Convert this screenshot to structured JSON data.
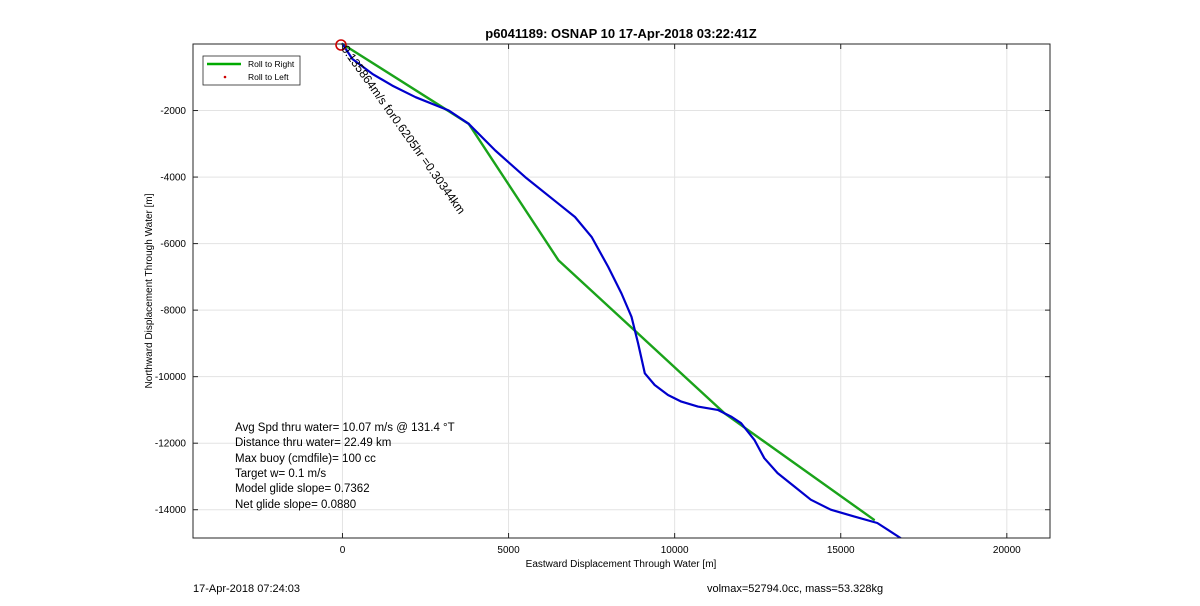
{
  "chart_data": {
    "type": "line",
    "title": "p6041189: OSNAP 10 17-Apr-2018 03:22:41Z",
    "xlabel": "Eastward Displacement Through Water [m]",
    "ylabel": "Northward Displacement Through Water [m]",
    "xlim": [
      -4500,
      21300
    ],
    "ylim": [
      -14850,
      0
    ],
    "xticks": [
      0,
      5000,
      10000,
      15000,
      20000
    ],
    "xtick_labels": [
      "0",
      "5000",
      "10000",
      "15000",
      "20000"
    ],
    "yticks": [
      -2000,
      -4000,
      -6000,
      -8000,
      -10000,
      -12000,
      -14000
    ],
    "ytick_labels": [
      "-2000",
      "-4000",
      "-6000",
      "-8000",
      "-10000",
      "-12000",
      "-14000"
    ],
    "grid": true,
    "legend": {
      "position": "top-left",
      "entries": [
        {
          "label": "Roll to Right",
          "color": "#00aa00",
          "style": "line"
        },
        {
          "label": "Roll to Left",
          "color": "#cc0000",
          "style": "dot"
        }
      ]
    },
    "series": [
      {
        "name": "Roll to Right",
        "color": "#1aa31a",
        "x": [
          0,
          3800,
          6500,
          11500,
          16000
        ],
        "y": [
          0,
          -2400,
          -6500,
          -11100,
          -14300
        ]
      },
      {
        "color": "#0000cc",
        "x": [
          0,
          300,
          900,
          1500,
          2200,
          3200,
          3800,
          4600,
          5500,
          6500,
          7000,
          7500,
          8000,
          8400,
          8700,
          8900,
          9100,
          9400,
          9800,
          10200,
          10700,
          11300,
          11700,
          12000,
          12400,
          12700,
          13100,
          13600,
          14100,
          14700,
          15400,
          16100,
          16800
        ],
        "y": [
          0,
          -450,
          -900,
          -1250,
          -1600,
          -2000,
          -2400,
          -3200,
          -4000,
          -4800,
          -5200,
          -5800,
          -6700,
          -7500,
          -8200,
          -9000,
          -9900,
          -10250,
          -10550,
          -10750,
          -10900,
          -11000,
          -11200,
          -11400,
          -11900,
          -12450,
          -12900,
          -13300,
          -13700,
          -14000,
          -14200,
          -14400,
          -14850
        ]
      }
    ],
    "annotations": {
      "start_marker_color": "#cc0000",
      "rotated_label": "0.135864m/s for0.6205hr =0.30344km",
      "stats": [
        "Avg Spd thru water= 10.07 m/s @ 131.4 °T",
        "Distance thru water= 22.49 km",
        "Max buoy (cmdfile)= 100 cc",
        "Target w= 0.1 m/s",
        "Model glide slope= 0.7362",
        "Net glide slope= 0.0880"
      ]
    }
  },
  "footer": {
    "left": "17-Apr-2018 07:24:03",
    "right": "volmax=52794.0cc, mass=53.328kg"
  }
}
